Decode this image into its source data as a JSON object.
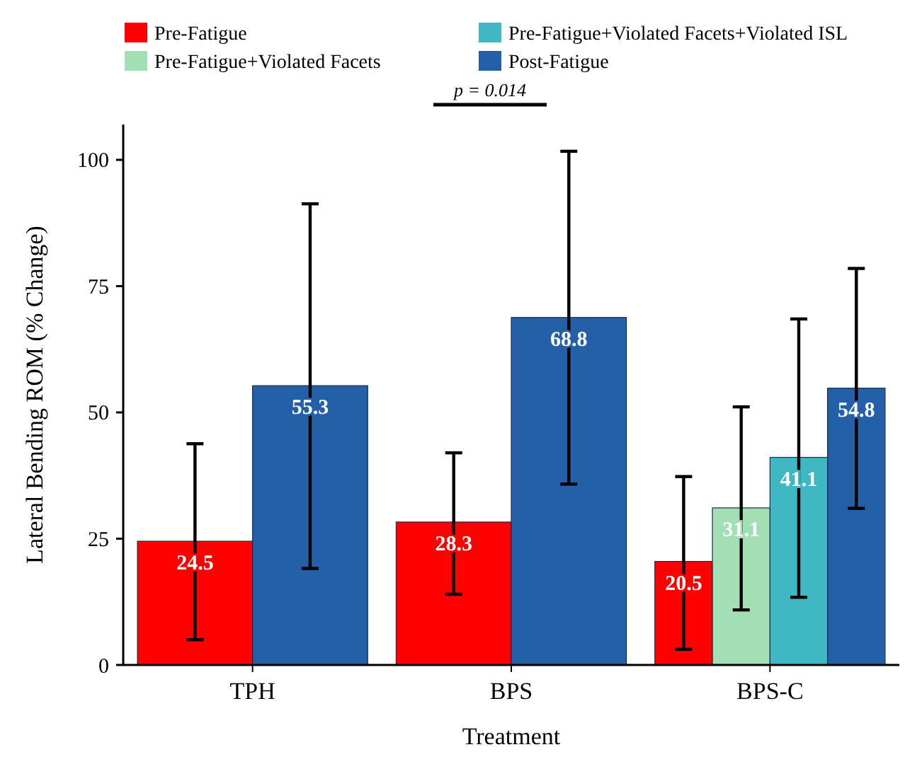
{
  "chart_data": {
    "type": "bar",
    "xlabel": "Treatment",
    "ylabel": "Lateral Bending ROM (% Change)",
    "categories": [
      "TPH",
      "BPS",
      "BPS-C"
    ],
    "series": [
      {
        "name": "Pre-Fatigue",
        "color": "#ff0000",
        "values": [
          24.5,
          28.3,
          20.5
        ],
        "errors": [
          [
            5.0,
            43.8
          ],
          [
            14,
            42
          ],
          [
            3.1,
            37.3
          ]
        ],
        "value_labels": [
          "24.5",
          "28.3",
          "20.5"
        ]
      },
      {
        "name": "Pre-Fatigue+Violated Facets",
        "color": "#a3dfb5",
        "values": [
          null,
          null,
          31.1
        ],
        "errors": [
          null,
          null,
          [
            10.9,
            51.1
          ]
        ],
        "value_labels": [
          null,
          null,
          "31.1"
        ]
      },
      {
        "name": "Pre-Fatigue+Violated Facets+Violated ISL",
        "color": "#40b8c4",
        "values": [
          null,
          null,
          41.1
        ],
        "errors": [
          null,
          null,
          [
            13.4,
            68.5
          ]
        ],
        "value_labels": [
          null,
          null,
          "41.1"
        ]
      },
      {
        "name": "Post-Fatigue",
        "color": "#2360a8",
        "values": [
          55.3,
          68.8,
          54.8
        ],
        "errors": [
          [
            19.1,
            91.3
          ],
          [
            35.8,
            101.7
          ],
          [
            31,
            78.5
          ]
        ],
        "value_labels": [
          "55.3",
          "68.8",
          "54.8"
        ]
      }
    ],
    "ylim": [
      0,
      107
    ],
    "yticks": [
      0,
      25,
      50,
      75,
      100
    ],
    "grid": false,
    "legend": "top",
    "annotations": [
      "p = 0.014"
    ]
  }
}
